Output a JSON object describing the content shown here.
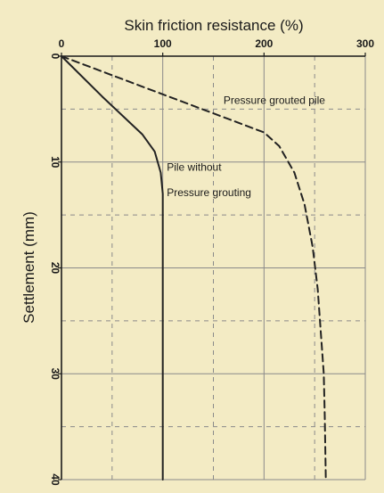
{
  "chart_data": {
    "type": "line",
    "title": "Skin friction resistance (%)",
    "xlabel": "",
    "ylabel": "Settlement (mm)",
    "xlim": [
      0,
      300
    ],
    "ylim": [
      0,
      40
    ],
    "x_ticks": [
      0,
      100,
      200,
      300
    ],
    "y_ticks": [
      0,
      10,
      20,
      30,
      40
    ],
    "x_minor_grid": [
      50,
      150,
      250
    ],
    "y_minor_grid": [
      5,
      15,
      25,
      35
    ],
    "x_axis_position": "top",
    "y_inverted": true,
    "grid": true,
    "series": [
      {
        "name": "Pressure grouted pile",
        "style": "dashed",
        "color": "#222222",
        "points": [
          [
            0,
            0
          ],
          [
            100,
            3.6
          ],
          [
            200,
            7.2
          ],
          [
            215,
            8.5
          ],
          [
            230,
            11
          ],
          [
            240,
            14
          ],
          [
            248,
            18
          ],
          [
            253,
            22
          ],
          [
            256,
            26
          ],
          [
            259,
            30
          ],
          [
            260,
            34
          ],
          [
            261,
            40
          ]
        ]
      },
      {
        "name": "Pile without Pressure grouting",
        "style": "solid",
        "color": "#222222",
        "points": [
          [
            0,
            0
          ],
          [
            40,
            3.8
          ],
          [
            80,
            7.4
          ],
          [
            92,
            9
          ],
          [
            98,
            11
          ],
          [
            100,
            13
          ],
          [
            100,
            40
          ]
        ]
      }
    ],
    "annotations": [
      {
        "text": "Pressure grouted pile",
        "x": 160,
        "y": 4.5
      },
      {
        "text": "Pile without",
        "x": 104,
        "y": 10.8
      },
      {
        "text": "Pressure grouting",
        "x": 104,
        "y": 13.2
      }
    ]
  },
  "colors": {
    "background": "#f3ebc4",
    "grid": "#8a8a8a",
    "axis": "#1a1a1a",
    "line": "#222222"
  }
}
